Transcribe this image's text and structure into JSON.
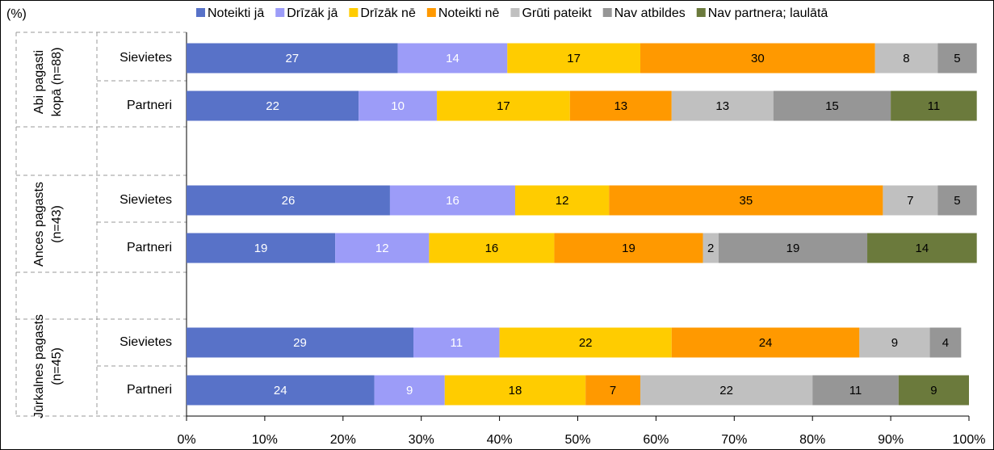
{
  "chart_data": {
    "type": "stacked-bar-horizontal",
    "unit_label": "(%)",
    "groups": [
      [
        "Abi pagasti",
        "kopā (n=88)"
      ],
      [
        "Ances pagasts",
        "(n=43)"
      ],
      [
        "Jūrkalnes pagasts",
        "(n=45)"
      ]
    ],
    "categories": [
      "Sievietes",
      "Partneri",
      "Sievietes",
      "Partneri",
      "Sievietes",
      "Partneri"
    ],
    "series": [
      {
        "name": "Noteikti jā",
        "color": "#5872c8",
        "label_color": "#ffffff",
        "values": [
          27,
          22,
          26,
          19,
          29,
          24
        ]
      },
      {
        "name": "Drīzāk jā",
        "color": "#9c9cf8",
        "label_color": "#ffffff",
        "values": [
          14,
          10,
          16,
          12,
          11,
          9
        ]
      },
      {
        "name": "Drīzāk nē",
        "color": "#ffcc00",
        "label_color": "#000000",
        "values": [
          17,
          17,
          12,
          16,
          22,
          18
        ]
      },
      {
        "name": "Noteikti nē",
        "color": "#ff9900",
        "label_color": "#000000",
        "values": [
          30,
          13,
          35,
          19,
          24,
          7
        ]
      },
      {
        "name": "Grūti pateikt",
        "color": "#c0c0c0",
        "label_color": "#000000",
        "values": [
          8,
          13,
          7,
          2,
          9,
          22
        ]
      },
      {
        "name": "Nav atbildes",
        "color": "#969696",
        "label_color": "#000000",
        "values": [
          5,
          15,
          5,
          19,
          4,
          11
        ]
      },
      {
        "name": "Nav partnera; laulātā",
        "color": "#6b7a3c",
        "label_color": "#000000",
        "values": [
          null,
          11,
          null,
          14,
          null,
          9
        ]
      }
    ],
    "xlim": [
      0,
      100
    ],
    "xticks": [
      {
        "value": 0,
        "label": "0%"
      },
      {
        "value": 10,
        "label": "10%"
      },
      {
        "value": 20,
        "label": "20%"
      },
      {
        "value": 30,
        "label": "30%"
      },
      {
        "value": 40,
        "label": "40%"
      },
      {
        "value": 50,
        "label": "50%"
      },
      {
        "value": 60,
        "label": "60%"
      },
      {
        "value": 70,
        "label": "70%"
      },
      {
        "value": 80,
        "label": "80%"
      },
      {
        "value": 90,
        "label": "90%"
      },
      {
        "value": 100,
        "label": "100%"
      }
    ]
  }
}
